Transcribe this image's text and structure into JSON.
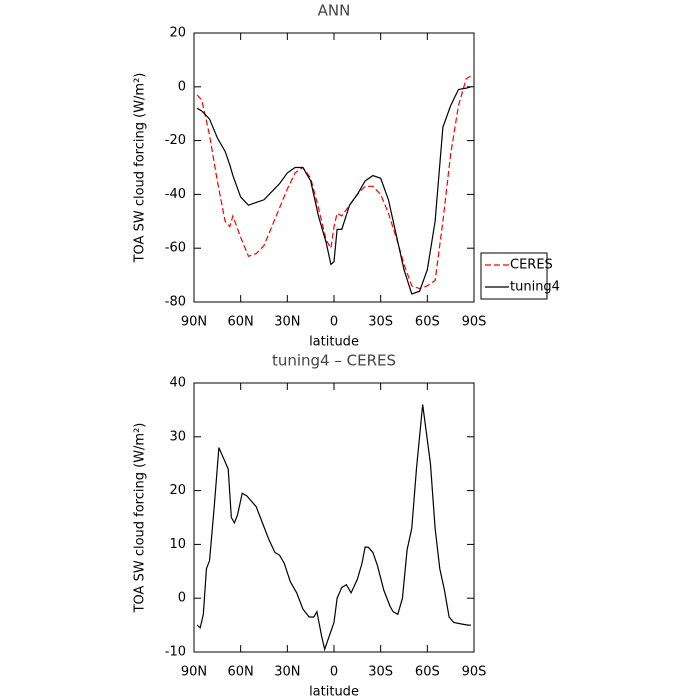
{
  "chart_data": [
    {
      "type": "line",
      "title": "ANN",
      "xlabel": "latitude",
      "ylabel": "TOA SW cloud forcing (W/m²)",
      "x": [
        88,
        85,
        80,
        75,
        70,
        67,
        65,
        60,
        55,
        50,
        45,
        40,
        35,
        30,
        25,
        20,
        15,
        10,
        5,
        2,
        0,
        -2,
        -5,
        -10,
        -15,
        -20,
        -25,
        -30,
        -35,
        -40,
        -45,
        -50,
        -55,
        -60,
        -65,
        -70,
        -75,
        -80,
        -85,
        -88
      ],
      "series": [
        {
          "name": "CERES",
          "color": "#ff0000",
          "dashed": true,
          "values": [
            -3,
            -5,
            -18,
            -35,
            -50,
            -52,
            -48,
            -56,
            -63,
            -62,
            -59,
            -52,
            -45,
            -38,
            -32,
            -30,
            -34,
            -45,
            -57,
            -60,
            -52,
            -47,
            -48,
            -44,
            -40,
            -37,
            -37,
            -40,
            -47,
            -56,
            -66,
            -74,
            -75,
            -74,
            -72,
            -50,
            -25,
            -7,
            3,
            4
          ]
        },
        {
          "name": "tuning4",
          "color": "#000000",
          "dashed": false,
          "values": [
            -8,
            -9,
            -12,
            -19,
            -24,
            -29,
            -33,
            -41,
            -44,
            -43,
            -42,
            -39,
            -36,
            -32,
            -30,
            -30,
            -35,
            -48,
            -58,
            -66,
            -65,
            -53,
            -53,
            -44,
            -40,
            -35,
            -33,
            -34,
            -42,
            -55,
            -68,
            -77,
            -76,
            -68,
            -50,
            -15,
            -7,
            -1,
            -0.5,
            0
          ]
        }
      ],
      "xlim": [
        90,
        -90
      ],
      "xticks": [
        {
          "value": 90,
          "label": "90N"
        },
        {
          "value": 60,
          "label": "60N"
        },
        {
          "value": 30,
          "label": "30N"
        },
        0,
        {
          "value": -30,
          "label": "30S"
        },
        {
          "value": -60,
          "label": "60S"
        },
        {
          "value": -90,
          "label": "90S"
        }
      ],
      "ylim": [
        -80,
        20
      ],
      "yticks": [
        -80,
        -60,
        -40,
        -20,
        0,
        20
      ],
      "legend": "right"
    },
    {
      "type": "line",
      "title": "tuning4 – CERES",
      "xlabel": "latitude",
      "ylabel": "TOA SW cloud forcing (W/m²)",
      "x": [
        88,
        86,
        84,
        82,
        80,
        77,
        74,
        71,
        68,
        66,
        64,
        62,
        59,
        56,
        53,
        50,
        46,
        42,
        38,
        35,
        32,
        28,
        24,
        20,
        16,
        13,
        11,
        8,
        6,
        3,
        0,
        -2,
        -5,
        -8,
        -11,
        -15,
        -18,
        -20,
        -22,
        -25,
        -28,
        -32,
        -36,
        -38,
        -41,
        -44,
        -47,
        -50,
        -53,
        -57,
        -62,
        -65,
        -68,
        -71,
        -74,
        -77,
        -82,
        -86,
        -88
      ],
      "series": [
        {
          "name": "tuning4 – CERES",
          "color": "#000000",
          "dashed": false,
          "values": [
            -5,
            -5.5,
            -3,
            5.5,
            7,
            17,
            28,
            26,
            24,
            15,
            14,
            15.5,
            19.5,
            19,
            18,
            17,
            14,
            11,
            8.5,
            8,
            6.5,
            3,
            1,
            -2,
            -3.5,
            -3.5,
            -2.5,
            -7,
            -9.5,
            -7,
            -4.5,
            0,
            2,
            2.5,
            1,
            3.5,
            6.5,
            9.5,
            9.5,
            8.5,
            6,
            1.5,
            -1.5,
            -2.5,
            -3,
            0,
            9,
            13,
            24,
            36,
            25,
            13,
            5.5,
            1.5,
            -3.5,
            -4.5,
            -4.8,
            -5,
            -5
          ]
        }
      ],
      "xlim": [
        90,
        -90
      ],
      "xticks": [
        {
          "value": 90,
          "label": "90N"
        },
        {
          "value": 60,
          "label": "60N"
        },
        {
          "value": 30,
          "label": "30N"
        },
        0,
        {
          "value": -30,
          "label": "30S"
        },
        {
          "value": -60,
          "label": "60S"
        },
        {
          "value": -90,
          "label": "90S"
        }
      ],
      "ylim": [
        -10,
        40
      ],
      "yticks": [
        -10,
        0,
        10,
        20,
        30,
        40
      ]
    }
  ]
}
